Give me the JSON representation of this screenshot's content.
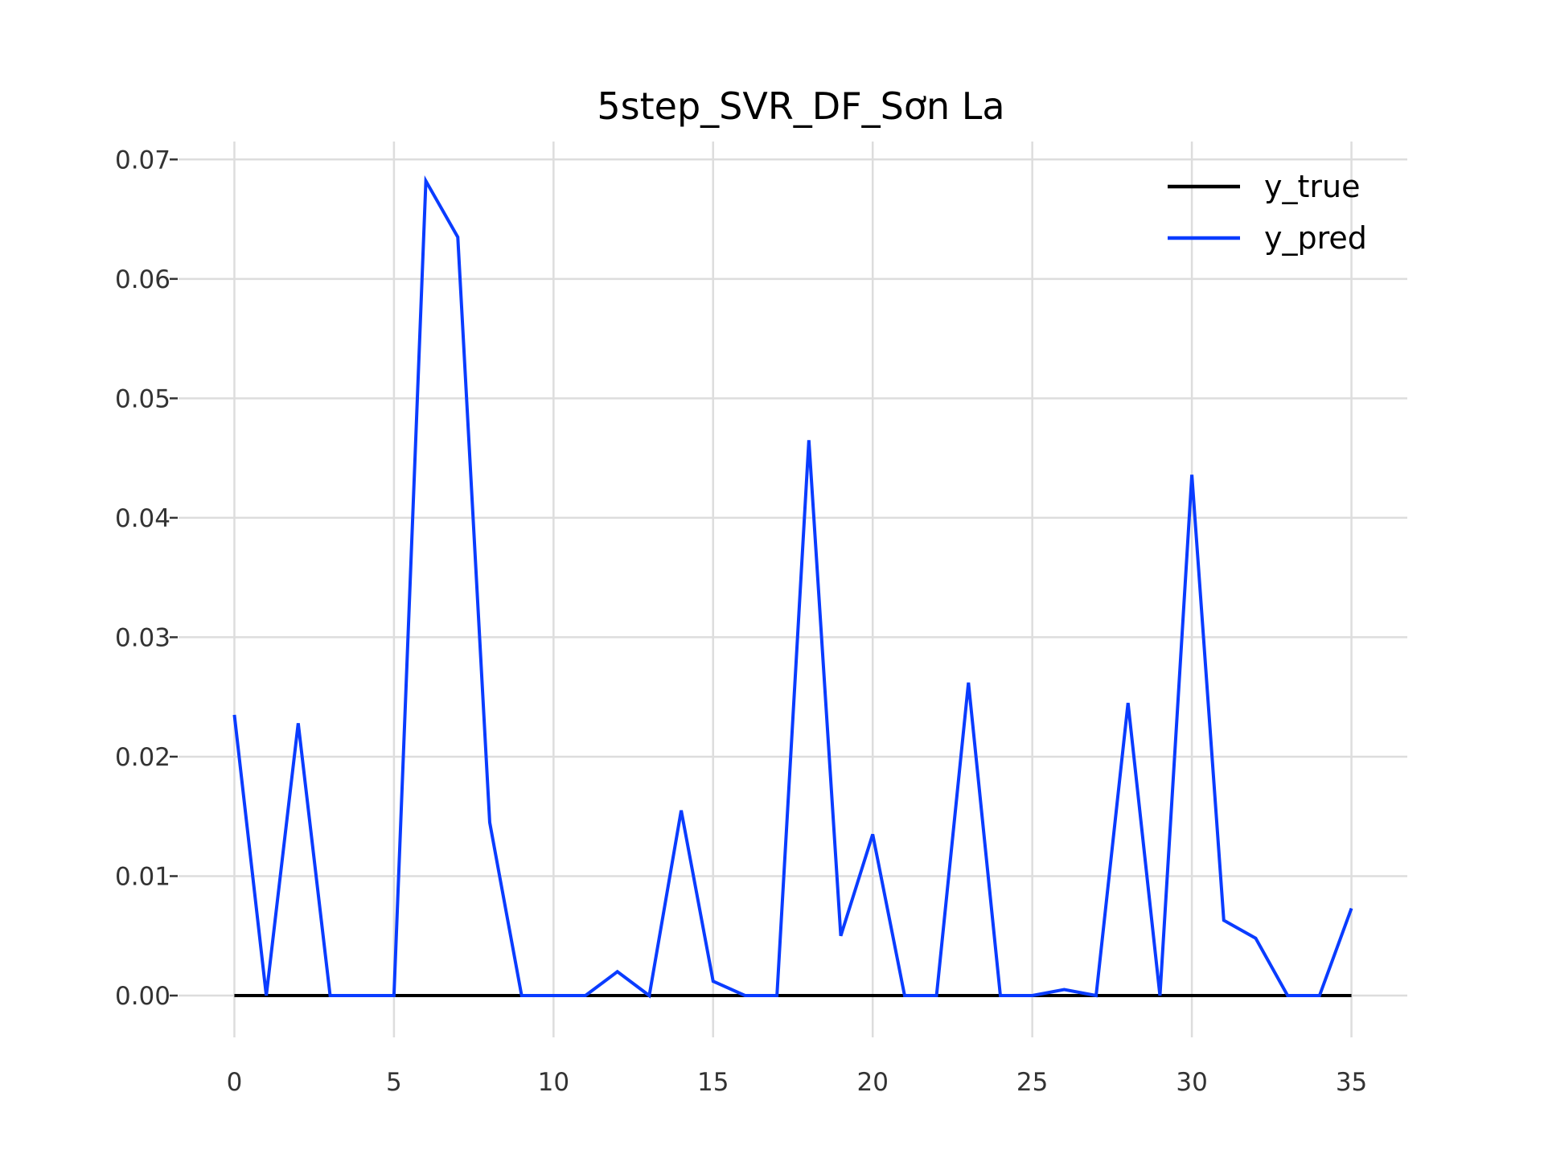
{
  "chart_data": {
    "type": "line",
    "title": "5step_SVR_DF_Sơn La",
    "xlabel": "",
    "ylabel": "",
    "xlim": [
      -1.75,
      36.75
    ],
    "ylim": [
      -0.0035,
      0.0715
    ],
    "x_ticks": [
      0,
      5,
      10,
      15,
      20,
      25,
      30,
      35
    ],
    "x_tick_labels": [
      "0",
      "5",
      "10",
      "15",
      "20",
      "25",
      "30",
      "35"
    ],
    "y_ticks": [
      0,
      0.01,
      0.02,
      0.03,
      0.04,
      0.05,
      0.06,
      0.07
    ],
    "y_tick_labels": [
      "0.00",
      "0.01",
      "0.02",
      "0.03",
      "0.04",
      "0.05",
      "0.06",
      "0.07"
    ],
    "grid": true,
    "legend_position": "top-right",
    "x": [
      0,
      1,
      2,
      3,
      4,
      5,
      6,
      7,
      8,
      9,
      10,
      11,
      12,
      13,
      14,
      15,
      16,
      17,
      18,
      19,
      20,
      21,
      22,
      23,
      24,
      25,
      26,
      27,
      28,
      29,
      30,
      31,
      32,
      33,
      34,
      35
    ],
    "series": [
      {
        "name": "y_true",
        "color": "#000000",
        "values": [
          0,
          0,
          0,
          0,
          0,
          0,
          0,
          0,
          0,
          0,
          0,
          0,
          0,
          0,
          0,
          0,
          0,
          0,
          0,
          0,
          0,
          0,
          0,
          0,
          0,
          0,
          0,
          0,
          0,
          0,
          0,
          0,
          0,
          0,
          0,
          0
        ]
      },
      {
        "name": "y_pred",
        "color": "#0a3cff",
        "values": [
          0.0235,
          0,
          0.0228,
          0,
          0,
          0,
          0.0682,
          0.0635,
          0.0145,
          0,
          0,
          0,
          0.002,
          0,
          0.0155,
          0.0012,
          0,
          0,
          0.0465,
          0.005,
          0.0135,
          0,
          0,
          0.0262,
          0,
          0,
          0.0005,
          0,
          0.0245,
          0,
          0.0436,
          0.0063,
          0.0048,
          0,
          0,
          0.0073
        ]
      }
    ]
  }
}
